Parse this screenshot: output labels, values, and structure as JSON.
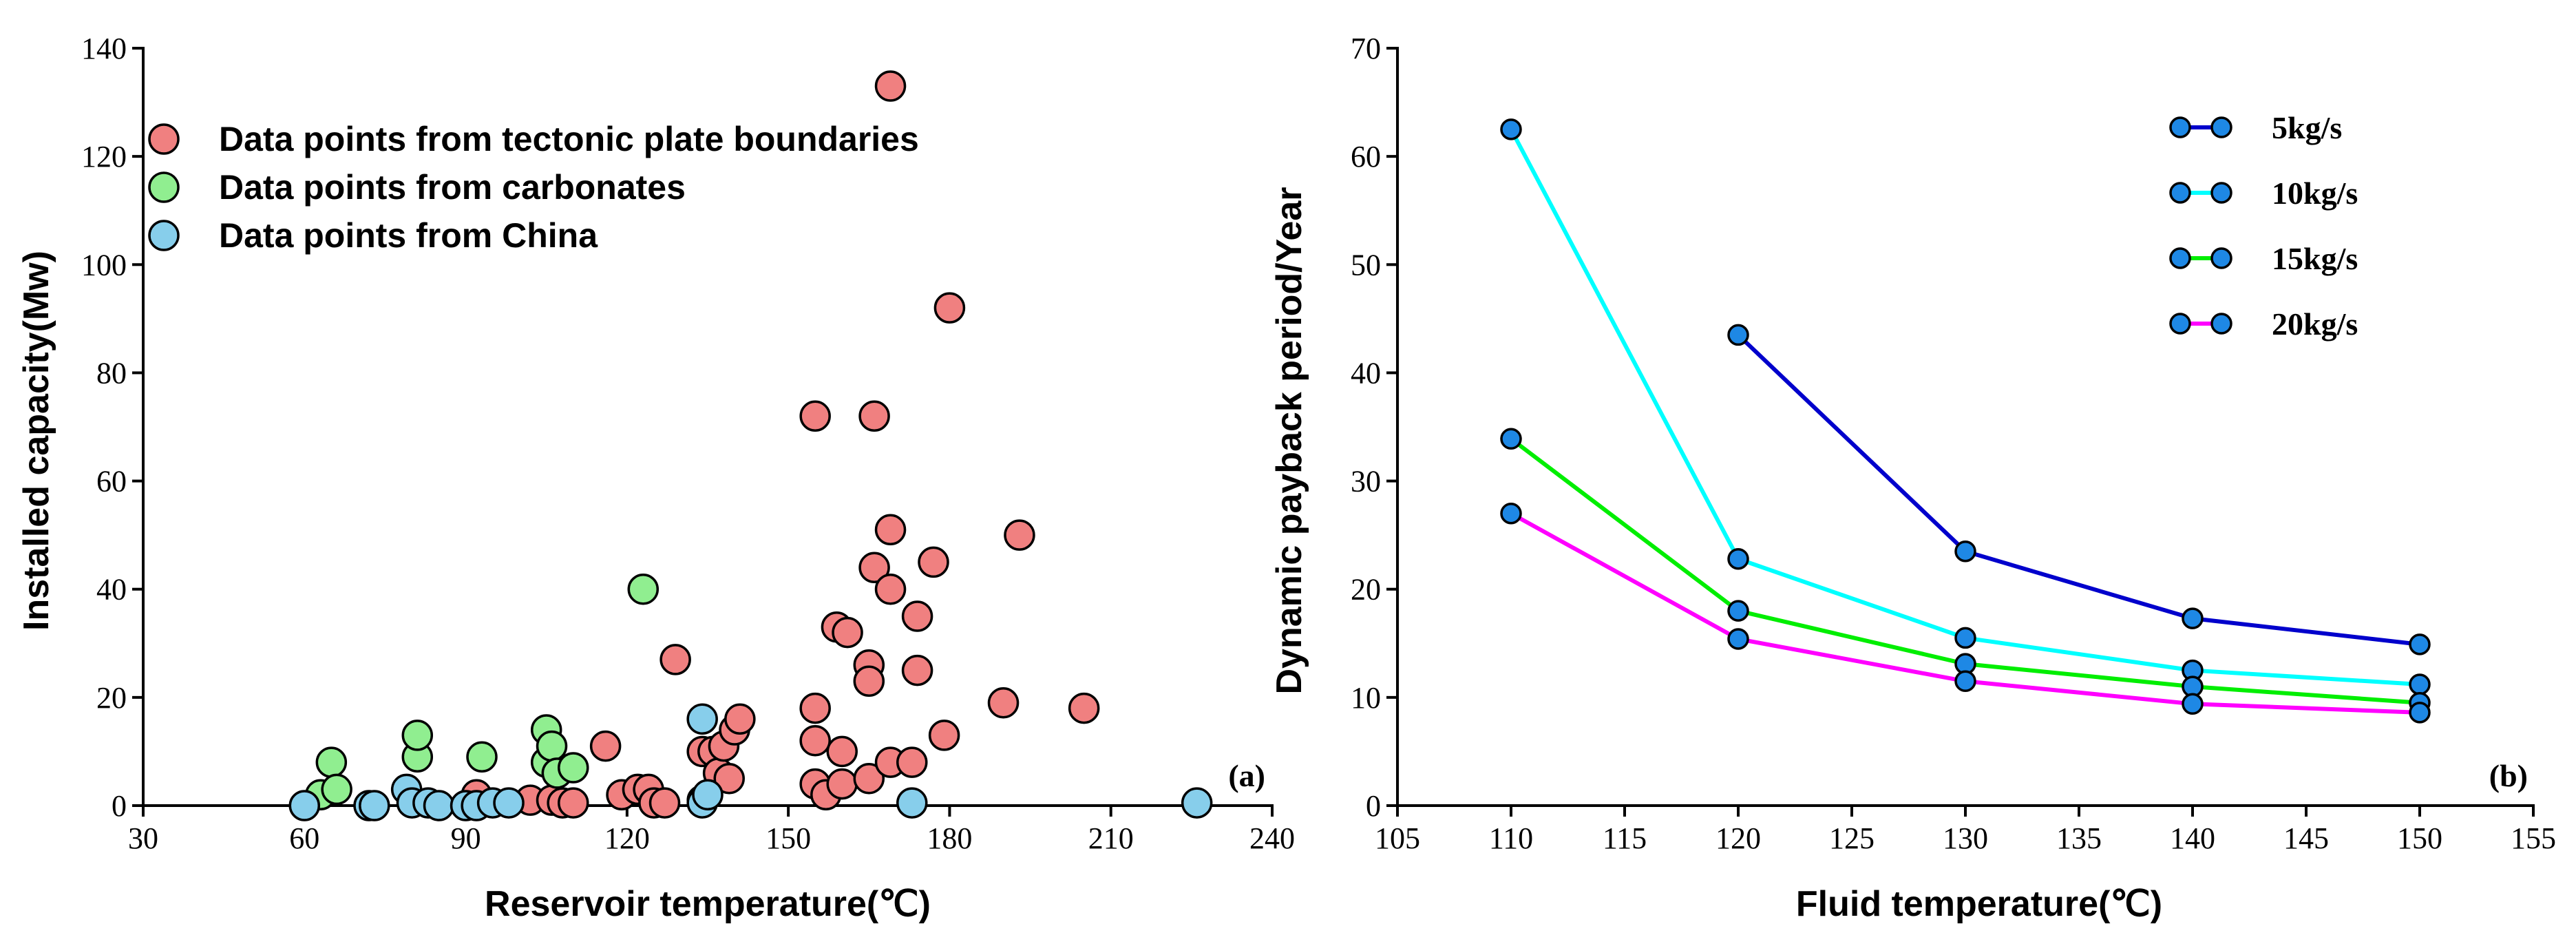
{
  "chart_data": [
    {
      "type": "scatter",
      "panel_label": "(a)",
      "xlabel": "Reservoir temperature(℃)",
      "ylabel": "Installed capacity(Mw)",
      "xlim": [
        30,
        240
      ],
      "ylim": [
        0,
        140
      ],
      "xticks": [
        30,
        60,
        90,
        120,
        150,
        180,
        210,
        240
      ],
      "yticks": [
        0,
        20,
        40,
        60,
        80,
        100,
        120,
        140
      ],
      "legend_position": "top-left",
      "series": [
        {
          "name": "Data points from tectonic plate boundaries",
          "color": "#f08080",
          "points": [
            [
              92,
              2
            ],
            [
              102,
              1
            ],
            [
              106,
              1
            ],
            [
              108,
              0.5
            ],
            [
              110,
              0.5
            ],
            [
              116,
              11
            ],
            [
              119,
              2
            ],
            [
              122,
              3
            ],
            [
              124,
              3
            ],
            [
              125,
              0.5
            ],
            [
              127,
              0.5
            ],
            [
              129,
              27
            ],
            [
              134,
              10
            ],
            [
              136,
              10
            ],
            [
              137,
              6
            ],
            [
              138,
              11
            ],
            [
              139,
              5
            ],
            [
              140,
              14
            ],
            [
              141,
              16
            ],
            [
              155,
              18
            ],
            [
              155,
              12
            ],
            [
              155,
              4
            ],
            [
              155,
              72
            ],
            [
              157,
              2
            ],
            [
              159,
              33
            ],
            [
              160,
              4
            ],
            [
              160,
              10
            ],
            [
              161,
              32
            ],
            [
              165,
              5
            ],
            [
              165,
              26
            ],
            [
              165,
              23
            ],
            [
              166,
              44
            ],
            [
              166,
              72
            ],
            [
              169,
              51
            ],
            [
              169,
              40
            ],
            [
              169,
              8
            ],
            [
              169,
              133
            ],
            [
              173,
              8
            ],
            [
              174,
              35
            ],
            [
              174,
              25
            ],
            [
              177,
              45
            ],
            [
              179,
              13
            ],
            [
              180,
              92
            ],
            [
              190,
              19
            ],
            [
              193,
              50
            ],
            [
              205,
              18
            ]
          ]
        },
        {
          "name": "Data points from carbonates",
          "color": "#90ee90",
          "points": [
            [
              63,
              2
            ],
            [
              65,
              8
            ],
            [
              66,
              3
            ],
            [
              81,
              9
            ],
            [
              81,
              13
            ],
            [
              93,
              9
            ],
            [
              105,
              14
            ],
            [
              105,
              8
            ],
            [
              106,
              11
            ],
            [
              107,
              6
            ],
            [
              110,
              7
            ],
            [
              123,
              40
            ]
          ]
        },
        {
          "name": "Data points from China",
          "color": "#87ceeb",
          "points": [
            [
              60,
              0
            ],
            [
              72,
              0
            ],
            [
              73,
              0
            ],
            [
              79,
              3
            ],
            [
              80,
              0.5
            ],
            [
              83,
              0.5
            ],
            [
              85,
              0
            ],
            [
              90,
              0
            ],
            [
              92,
              0
            ],
            [
              95,
              0.5
            ],
            [
              98,
              0.5
            ],
            [
              134,
              16
            ],
            [
              134,
              1
            ],
            [
              134,
              0.5
            ],
            [
              135,
              2
            ],
            [
              173,
              0.5
            ],
            [
              226,
              0.5
            ]
          ]
        }
      ]
    },
    {
      "type": "line",
      "panel_label": "(b)",
      "xlabel": "Fluid temperature(℃)",
      "ylabel": "Dynamic payback period/Year",
      "xlim": [
        105,
        155
      ],
      "ylim": [
        0,
        70
      ],
      "xticks": [
        105,
        110,
        115,
        120,
        125,
        130,
        135,
        140,
        145,
        150,
        155
      ],
      "yticks": [
        0,
        10,
        20,
        30,
        40,
        50,
        60,
        70
      ],
      "legend_position": "top-right",
      "marker_color": "#1e88e5",
      "series": [
        {
          "name": "5kg/s",
          "color": "#0000cc",
          "x": [
            120,
            130,
            140,
            150
          ],
          "values": [
            43.5,
            23.5,
            17.3,
            14.9
          ]
        },
        {
          "name": "10kg/s",
          "color": "#00ffff",
          "x": [
            110,
            120,
            130,
            140,
            150
          ],
          "values": [
            62.5,
            22.8,
            15.5,
            12.5,
            11.2
          ]
        },
        {
          "name": "15kg/s",
          "color": "#00ee00",
          "x": [
            110,
            120,
            130,
            140,
            150
          ],
          "values": [
            33.9,
            18.0,
            13.1,
            11.0,
            9.5
          ]
        },
        {
          "name": "20kg/s",
          "color": "#ff00ff",
          "x": [
            110,
            120,
            130,
            140,
            150
          ],
          "values": [
            27.0,
            15.4,
            11.5,
            9.4,
            8.6
          ]
        }
      ]
    }
  ]
}
